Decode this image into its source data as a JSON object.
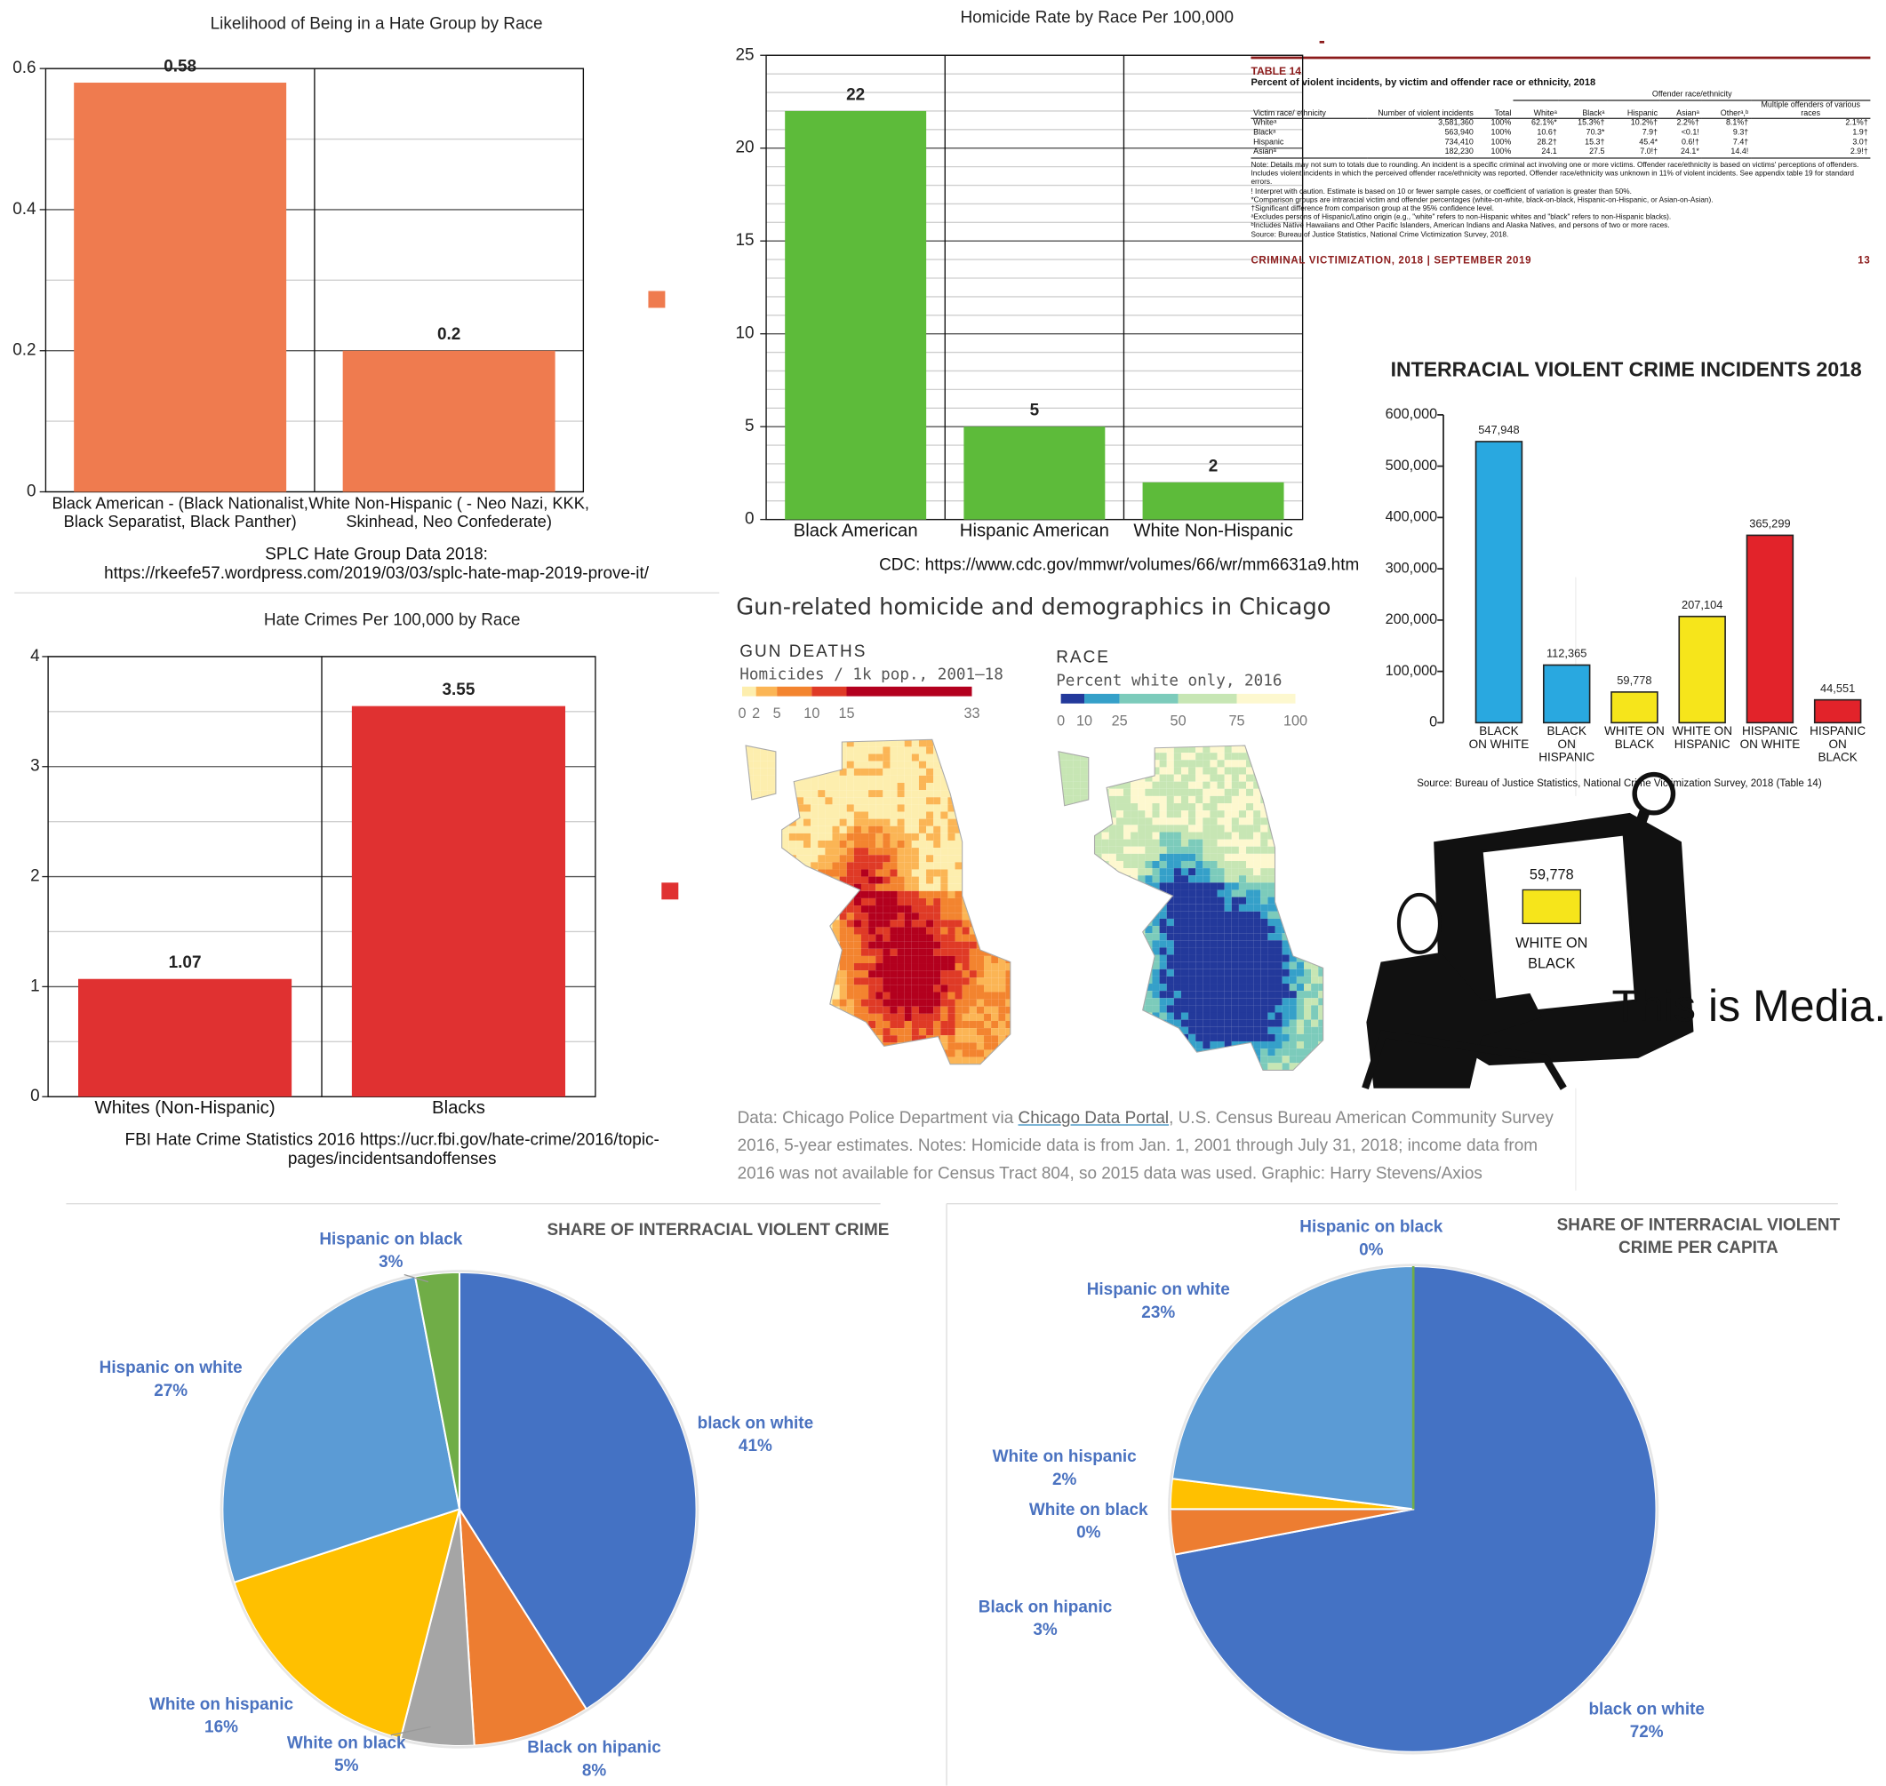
{
  "chart_data": [
    {
      "type": "bar",
      "title": "Likelihood of Being in a Hate Group by Race",
      "categories": [
        "Black American - (Black Nationalist, Black Separatist, Black Panther)",
        "White Non-Hispanic ( - Neo Nazi, KKK, Skinhead, Neo Confederate)"
      ],
      "series": [
        {
          "color": "#ef7b4f",
          "values": [
            0.58,
            0.2
          ]
        }
      ],
      "ylim": [
        0,
        0.6
      ],
      "yticks": [
        0,
        0.2,
        0.4,
        0.6
      ],
      "grid": true,
      "minor_grid": 2,
      "legend": "right",
      "source": "SPLC Hate Group Data 2018: https://rkeefe57.wordpress.com/2019/03/03/splc-hate-map-2019-prove-it/"
    },
    {
      "type": "bar",
      "title": "Homicide Rate by Race Per 100,000",
      "categories": [
        "Black American",
        "Hispanic American",
        "White Non-Hispanic"
      ],
      "series": [
        {
          "color": "#5dbb3a",
          "values": [
            22,
            5,
            2
          ]
        }
      ],
      "ylim": [
        0,
        25
      ],
      "yticks": [
        0,
        5,
        10,
        15,
        20,
        25
      ],
      "grid": true,
      "minor_grid": 5,
      "source": "CDC: https://www.cdc.gov/mmwr/volumes/66/wr/mm6631a9.htm"
    },
    {
      "type": "bar",
      "title": "INTERRACIAL VIOLENT CRIME INCIDENTS 2018",
      "categories": [
        "BLACK ON WHITE",
        "BLACK ON HISPANIC",
        "WHITE ON BLACK",
        "WHITE ON HISPANIC",
        "HISPANIC ON WHITE",
        "HISPANIC ON BLACK"
      ],
      "series": [
        {
          "values": [
            547948,
            112365,
            59778,
            207104,
            365299,
            44551
          ],
          "value_labels": [
            "547,948",
            "112,365",
            "59,778",
            "207,104",
            "365,299",
            "44,551"
          ],
          "colors": [
            "#29a8e0",
            "#29a8e0",
            "#f6e51b",
            "#f6e51b",
            "#e2232a",
            "#e2232a"
          ]
        }
      ],
      "ylim": [
        0,
        600000
      ],
      "yticks": [
        0,
        {
          "value": 100000,
          "label": "100,000"
        },
        {
          "value": 200000,
          "label": "200,000"
        },
        {
          "value": 300000,
          "label": "300,000"
        },
        {
          "value": 400000,
          "label": "400,000"
        },
        {
          "value": 500000,
          "label": "500,000"
        },
        {
          "value": 600000,
          "label": "600,000"
        }
      ],
      "grid": false,
      "source": "Source: Bureau of Justice Statistics, National Crime Victimization Survey, 2018 (Table 14)"
    },
    {
      "type": "bar",
      "title": "Hate Crimes Per 100,000 by Race",
      "categories": [
        "Whites (Non-Hispanic)",
        "Blacks"
      ],
      "series": [
        {
          "color": "#e03131",
          "values": [
            1.07,
            3.55
          ]
        }
      ],
      "ylim": [
        0,
        4
      ],
      "yticks": [
        0,
        1,
        2,
        3,
        4
      ],
      "grid": true,
      "minor_grid": 2,
      "legend": "right",
      "source": "FBI Hate Crime Statistics 2016 https://ucr.fbi.gov/hate-crime/2016/topic-pages/incidentsandoffenses"
    },
    {
      "type": "pie",
      "title": "SHARE OF INTERRACIAL VIOLENT CRIME",
      "categories": [
        "black on white",
        "Black on hipanic",
        "White on black",
        "White on hispanic",
        "Hispanic on white",
        "Hispanic on black"
      ],
      "values": [
        41,
        8,
        5,
        16,
        27,
        3
      ],
      "value_labels": [
        "41%",
        "8%",
        "5%",
        "16%",
        "27%",
        "3%"
      ],
      "colors": [
        "#4472c4",
        "#ed7d31",
        "#a5a5a5",
        "#ffc000",
        "#5b9bd5",
        "#70ad47"
      ]
    },
    {
      "type": "pie",
      "title": "SHARE OF INTERRACIAL VIOLENT CRIME PER CAPITA",
      "categories": [
        "black on white",
        "Black on hipanic",
        "White on black",
        "White on hispanic",
        "Hispanic on white",
        "Hispanic on black"
      ],
      "values": [
        72,
        3,
        0,
        2,
        23,
        0
      ],
      "value_labels": [
        "72%",
        "3%",
        "0%",
        "2%",
        "23%",
        "0%"
      ],
      "colors": [
        "#4472c4",
        "#ed7d31",
        "#a5a5a5",
        "#ffc000",
        "#5b9bd5",
        "#70ad47"
      ]
    }
  ],
  "table14": {
    "label": "TABLE 14",
    "title": "Percent of violent incidents, by victim and offender race or ethnicity, 2018",
    "group_header": "Offender race/ethnicity",
    "columns": [
      "Victim race/ ethnicity",
      "Number of violent incidents",
      "Total",
      "Whiteᵃ",
      "Blackᵃ",
      "Hispanic",
      "Asianᵃ",
      "Otherᵃ,ᵇ",
      "Multiple offenders of various races"
    ],
    "rows": [
      [
        "Whiteᵃ",
        "3,581,360",
        "100%",
        "62.1%*",
        "15.3%†",
        "10.2%†",
        "2.2%†",
        "8.1%†",
        "2.1%†"
      ],
      [
        "Blackᵃ",
        "563,940",
        "100%",
        "10.6†",
        "70.3*",
        "7.9†",
        "<0.1!",
        "9.3†",
        "1.9†"
      ],
      [
        "Hispanic",
        "734,410",
        "100%",
        "28.2†",
        "15.3†",
        "45.4*",
        "0.6!†",
        "7.4†",
        "3.0†"
      ],
      [
        "Asianᵃ",
        "182,230",
        "100%",
        "24.1",
        "27.5",
        "7.0!†",
        "24.1*",
        "14.4!",
        "2.9!†"
      ]
    ],
    "notes": [
      "Note: Details may not sum to totals due to rounding. An incident is a specific criminal act involving one or more victims. Offender race/ethnicity is based on victims' perceptions of offenders. Includes violent incidents in which the perceived offender race/ethnicity was reported. Offender race/ethnicity was unknown in 11% of violent incidents. See appendix table 19 for standard errors.",
      "! Interpret with caution. Estimate is based on 10 or fewer sample cases, or coefficient of variation is greater than 50%.",
      "*Comparison groups are intraracial victim and offender percentages (white-on-white, black-on-black, Hispanic-on-Hispanic, or Asian-on-Asian).",
      "†Significant difference from comparison group at the 95% confidence level.",
      "ᵃExcludes persons of Hispanic/Latino origin (e.g., \"white\" refers to non-Hispanic whites and \"black\" refers to non-Hispanic blacks).",
      "ᵇIncludes Native Hawaiians and Other Pacific Islanders, American Indians and Alaska Natives, and persons of two or more races.",
      "Source: Bureau of Justice Statistics, National Crime Victimization Survey, 2018."
    ],
    "footer": "CRIMINAL VICTIMIZATION, 2018 | SEPTEMBER 2019",
    "page": "13"
  },
  "chicago": {
    "title": "Gun-related homicide and demographics in Chicago",
    "panels": [
      {
        "heading": "GUN DEATHS",
        "subtitle": "Homicides / 1k pop., 2001–18",
        "scale_lim": [
          0,
          33
        ],
        "scale_ticks": [
          0,
          2,
          5,
          10,
          15,
          33
        ],
        "colors": [
          "#fdeeae",
          "#fbb555",
          "#f3842f",
          "#df3a26",
          "#b3001e"
        ]
      },
      {
        "heading": "RACE",
        "subtitle": "Percent white only, 2016",
        "scale_lim": [
          0,
          100
        ],
        "scale_ticks": [
          0,
          10,
          25,
          50,
          75,
          100
        ],
        "colors": [
          "#23399b",
          "#35a0c9",
          "#7ccbbb",
          "#c7e6b4",
          "#fdf8cf"
        ]
      }
    ],
    "note_before": "Data: Chicago Police Department via ",
    "note_link": "Chicago Data Portal",
    "note_after": ", U.S. Census Bureau American Community Survey 2016, 5-year estimates. Notes: Homicide data is from Jan. 1, 2001 through July 31, 2018; income data from 2016 was not available for Census Tract 804, so 2015 data was used. Graphic: Harry Stevens/Axios"
  },
  "meme": {
    "screen_value": "59,778",
    "screen_label": "WHITE ON BLACK",
    "caption": "This is Media."
  }
}
